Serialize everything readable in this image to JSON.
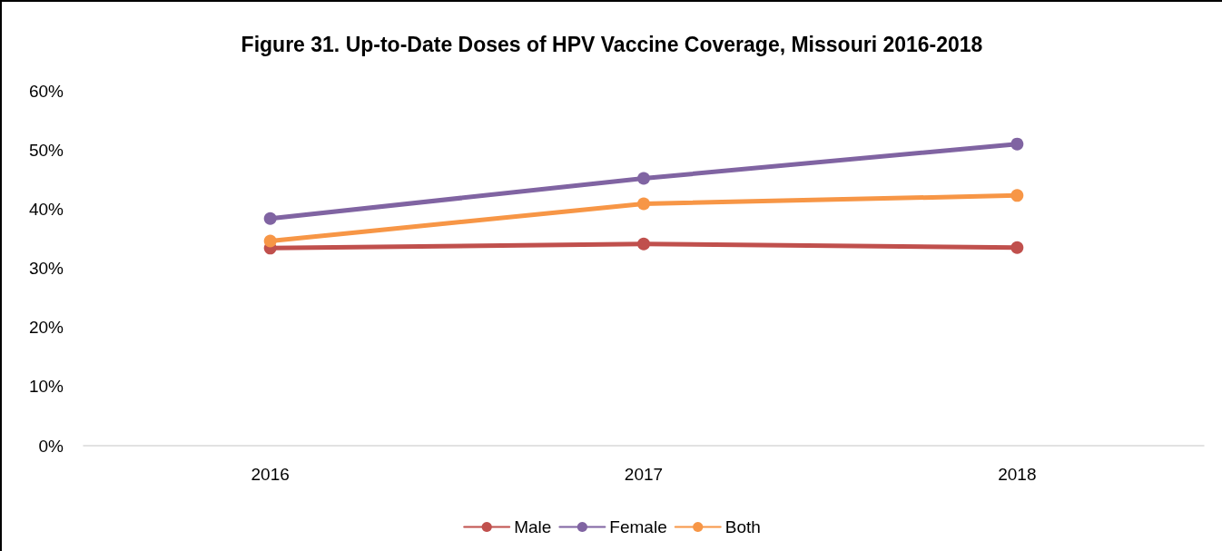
{
  "chart_data": {
    "type": "line",
    "title": "Figure 31. Up-to-Date Doses of HPV Vaccine Coverage, Missouri 2016-2018",
    "categories": [
      "2016",
      "2017",
      "2018"
    ],
    "series": [
      {
        "name": "Male",
        "color": "#c0504d",
        "values": [
          33.4,
          34.1,
          33.5
        ]
      },
      {
        "name": "Female",
        "color": "#8064a2",
        "values": [
          38.4,
          45.2,
          51.0
        ]
      },
      {
        "name": "Both",
        "color": "#f79646",
        "values": [
          34.6,
          40.9,
          42.3
        ]
      }
    ],
    "ylim": [
      0,
      60
    ],
    "yticks": [
      {
        "value": 0,
        "label": "0%"
      },
      {
        "value": 10,
        "label": "10%"
      },
      {
        "value": 20,
        "label": "20%"
      },
      {
        "value": 30,
        "label": "30%"
      },
      {
        "value": 40,
        "label": "40%"
      },
      {
        "value": 50,
        "label": "50%"
      },
      {
        "value": 60,
        "label": "60%"
      }
    ],
    "grid": false,
    "legend": "bottom",
    "marker": "circle",
    "line_style": "solid"
  }
}
